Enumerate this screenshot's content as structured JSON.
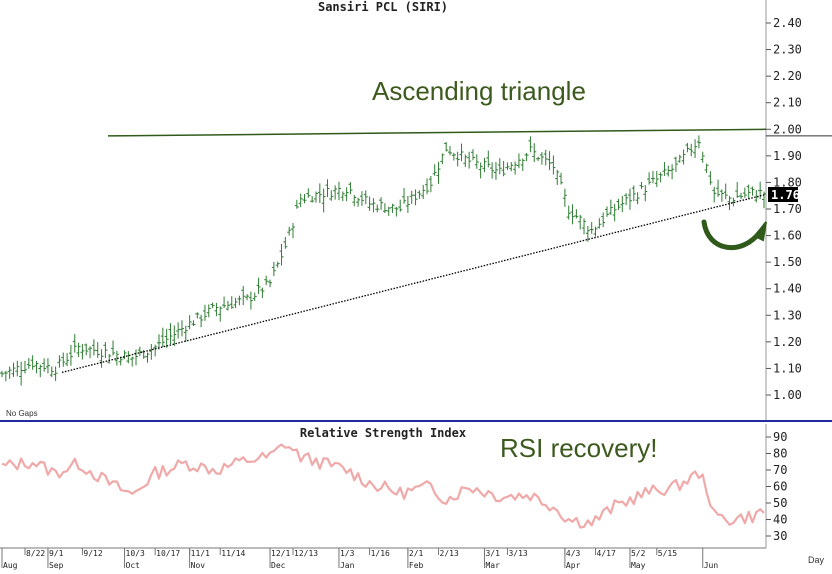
{
  "chart_data": [
    {
      "type": "bar",
      "title": "Sansiri PCL (SIRI)",
      "subtype": "ohlc",
      "ylim": [
        0.92,
        2.44
      ],
      "y_ticks": [
        "2.40",
        "2.30",
        "2.20",
        "2.10",
        "2.00",
        "1.90",
        "1.80",
        "1.70",
        "1.60",
        "1.50",
        "1.40",
        "1.30",
        "1.20",
        "1.10",
        "1.00"
      ],
      "y_tick_values": [
        2.4,
        2.3,
        2.2,
        2.1,
        2.0,
        1.9,
        1.8,
        1.7,
        1.6,
        1.5,
        1.4,
        1.3,
        1.2,
        1.1,
        1.0
      ],
      "last_value_label": "1.76",
      "gaps_note": "No Gaps",
      "annotation_pattern": "Ascending triangle",
      "close_anchors": [
        {
          "x": 0,
          "y": 1.08
        },
        {
          "x": 8,
          "y": 1.12
        },
        {
          "x": 14,
          "y": 1.1
        },
        {
          "x": 20,
          "y": 1.18
        },
        {
          "x": 28,
          "y": 1.16
        },
        {
          "x": 34,
          "y": 1.14
        },
        {
          "x": 40,
          "y": 1.18
        },
        {
          "x": 48,
          "y": 1.26
        },
        {
          "x": 56,
          "y": 1.33
        },
        {
          "x": 64,
          "y": 1.36
        },
        {
          "x": 70,
          "y": 1.42
        },
        {
          "x": 74,
          "y": 1.56
        },
        {
          "x": 78,
          "y": 1.74
        },
        {
          "x": 84,
          "y": 1.76
        },
        {
          "x": 90,
          "y": 1.78
        },
        {
          "x": 96,
          "y": 1.72
        },
        {
          "x": 104,
          "y": 1.7
        },
        {
          "x": 112,
          "y": 1.8
        },
        {
          "x": 116,
          "y": 1.93
        },
        {
          "x": 122,
          "y": 1.88
        },
        {
          "x": 130,
          "y": 1.84
        },
        {
          "x": 138,
          "y": 1.92
        },
        {
          "x": 144,
          "y": 1.86
        },
        {
          "x": 148,
          "y": 1.7
        },
        {
          "x": 154,
          "y": 1.62
        },
        {
          "x": 160,
          "y": 1.7
        },
        {
          "x": 168,
          "y": 1.78
        },
        {
          "x": 176,
          "y": 1.86
        },
        {
          "x": 182,
          "y": 1.96
        },
        {
          "x": 184,
          "y": 1.86
        },
        {
          "x": 186,
          "y": 1.76
        },
        {
          "x": 190,
          "y": 1.74
        },
        {
          "x": 196,
          "y": 1.76
        },
        {
          "x": 199,
          "y": 1.76
        }
      ],
      "resistance_line": [
        {
          "x": 0,
          "y": 1.975
        },
        {
          "x": 199,
          "y": 2.0
        }
      ],
      "support_line": [
        {
          "x": 0,
          "y": 1.08
        },
        {
          "x": 199,
          "y": 1.755
        }
      ]
    },
    {
      "type": "line",
      "title": "Relative Strength Index",
      "ylim": [
        25,
        95
      ],
      "y_ticks": [
        "90",
        "80",
        "70",
        "60",
        "50",
        "40",
        "30"
      ],
      "y_tick_values": [
        90,
        80,
        70,
        60,
        50,
        40,
        30
      ],
      "annotation": "RSI recovery!",
      "color": "#f0a9a9",
      "anchors": [
        {
          "x": 0,
          "y": 72
        },
        {
          "x": 8,
          "y": 75
        },
        {
          "x": 14,
          "y": 68
        },
        {
          "x": 20,
          "y": 74
        },
        {
          "x": 28,
          "y": 62
        },
        {
          "x": 34,
          "y": 55
        },
        {
          "x": 40,
          "y": 68
        },
        {
          "x": 48,
          "y": 74
        },
        {
          "x": 56,
          "y": 70
        },
        {
          "x": 64,
          "y": 76
        },
        {
          "x": 70,
          "y": 78
        },
        {
          "x": 74,
          "y": 86
        },
        {
          "x": 78,
          "y": 78
        },
        {
          "x": 84,
          "y": 74
        },
        {
          "x": 90,
          "y": 70
        },
        {
          "x": 96,
          "y": 62
        },
        {
          "x": 104,
          "y": 56
        },
        {
          "x": 112,
          "y": 60
        },
        {
          "x": 116,
          "y": 52
        },
        {
          "x": 122,
          "y": 60
        },
        {
          "x": 130,
          "y": 54
        },
        {
          "x": 138,
          "y": 55
        },
        {
          "x": 144,
          "y": 48
        },
        {
          "x": 148,
          "y": 40
        },
        {
          "x": 154,
          "y": 38
        },
        {
          "x": 160,
          "y": 48
        },
        {
          "x": 168,
          "y": 56
        },
        {
          "x": 176,
          "y": 60
        },
        {
          "x": 182,
          "y": 68
        },
        {
          "x": 184,
          "y": 60
        },
        {
          "x": 186,
          "y": 42
        },
        {
          "x": 190,
          "y": 40
        },
        {
          "x": 196,
          "y": 42
        },
        {
          "x": 199,
          "y": 45
        }
      ]
    }
  ],
  "x_axis": {
    "date_labels": [
      {
        "text": "8/22",
        "x": 6
      },
      {
        "text": "9/1",
        "x": 12
      },
      {
        "text": "9/12",
        "x": 21
      },
      {
        "text": "10/3",
        "x": 32
      },
      {
        "text": "10/17",
        "x": 40
      },
      {
        "text": "11/1",
        "x": 49
      },
      {
        "text": "11/14",
        "x": 57
      },
      {
        "text": "12/1",
        "x": 70
      },
      {
        "text": "12/13",
        "x": 76
      },
      {
        "text": "1/3",
        "x": 88
      },
      {
        "text": "1/16",
        "x": 96
      },
      {
        "text": "2/1",
        "x": 106
      },
      {
        "text": "2/13",
        "x": 114
      },
      {
        "text": "3/1",
        "x": 126
      },
      {
        "text": "3/13",
        "x": 132
      },
      {
        "text": "4/3",
        "x": 147
      },
      {
        "text": "4/17",
        "x": 155
      },
      {
        "text": "5/2",
        "x": 164
      },
      {
        "text": "5/15",
        "x": 171
      }
    ],
    "month_labels": [
      {
        "text": "Aug",
        "x": 0
      },
      {
        "text": "Sep",
        "x": 12
      },
      {
        "text": "Oct",
        "x": 32
      },
      {
        "text": "Nov",
        "x": 49
      },
      {
        "text": "Dec",
        "x": 70
      },
      {
        "text": "Jan",
        "x": 88
      },
      {
        "text": "Feb",
        "x": 106
      },
      {
        "text": "Mar",
        "x": 126
      },
      {
        "text": "Apr",
        "x": 147
      },
      {
        "text": "May",
        "x": 164
      },
      {
        "text": "Jun",
        "x": 183
      }
    ],
    "period_label": "Day"
  },
  "colors": {
    "bars": "#2e7d32",
    "triangle_lines": "#2f5a1a",
    "support_line": "#000000",
    "rsi": "#f0a9a9",
    "separator": "#1f2a9c",
    "arrow": "#2f5a1a"
  }
}
